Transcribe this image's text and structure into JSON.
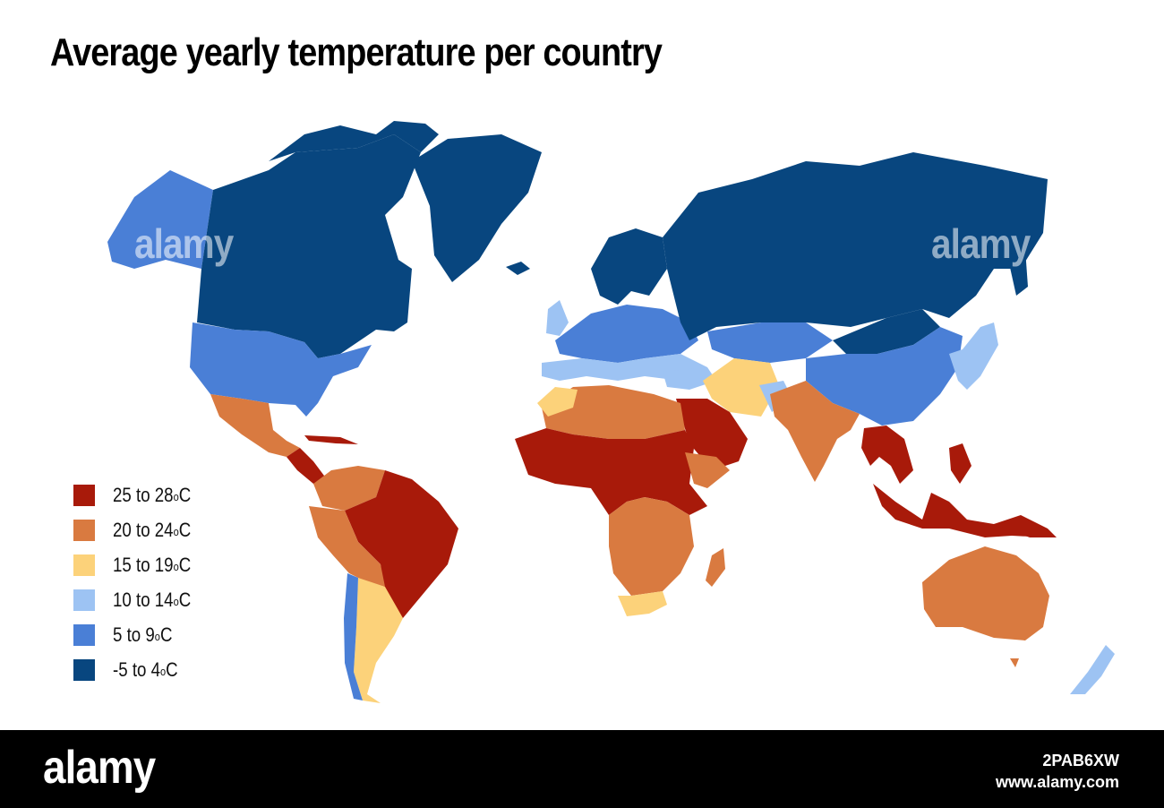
{
  "title": "Average yearly temperature per country",
  "legend": [
    {
      "label": "25 to 28",
      "unit": "C",
      "degree": "o",
      "color": "#a81a0a"
    },
    {
      "label": "20 to 24",
      "unit": "C",
      "degree": "o",
      "color": "#d97a40"
    },
    {
      "label": "15 to 19",
      "unit": "C",
      "degree": "o",
      "color": "#fcd27a"
    },
    {
      "label": "10 to 14",
      "unit": "C",
      "degree": "o",
      "color": "#9dc3f3"
    },
    {
      "label": "5 to 9",
      "unit": "C",
      "degree": "o",
      "color": "#4a7fd6"
    },
    {
      "label": "-5 to 4",
      "unit": "C",
      "degree": "o",
      "color": "#08467f"
    }
  ],
  "watermark": {
    "text": "alamy"
  },
  "footer": {
    "brand": "alamy",
    "image_id": "2PAB6XW",
    "site": "www.alamy.com"
  }
}
